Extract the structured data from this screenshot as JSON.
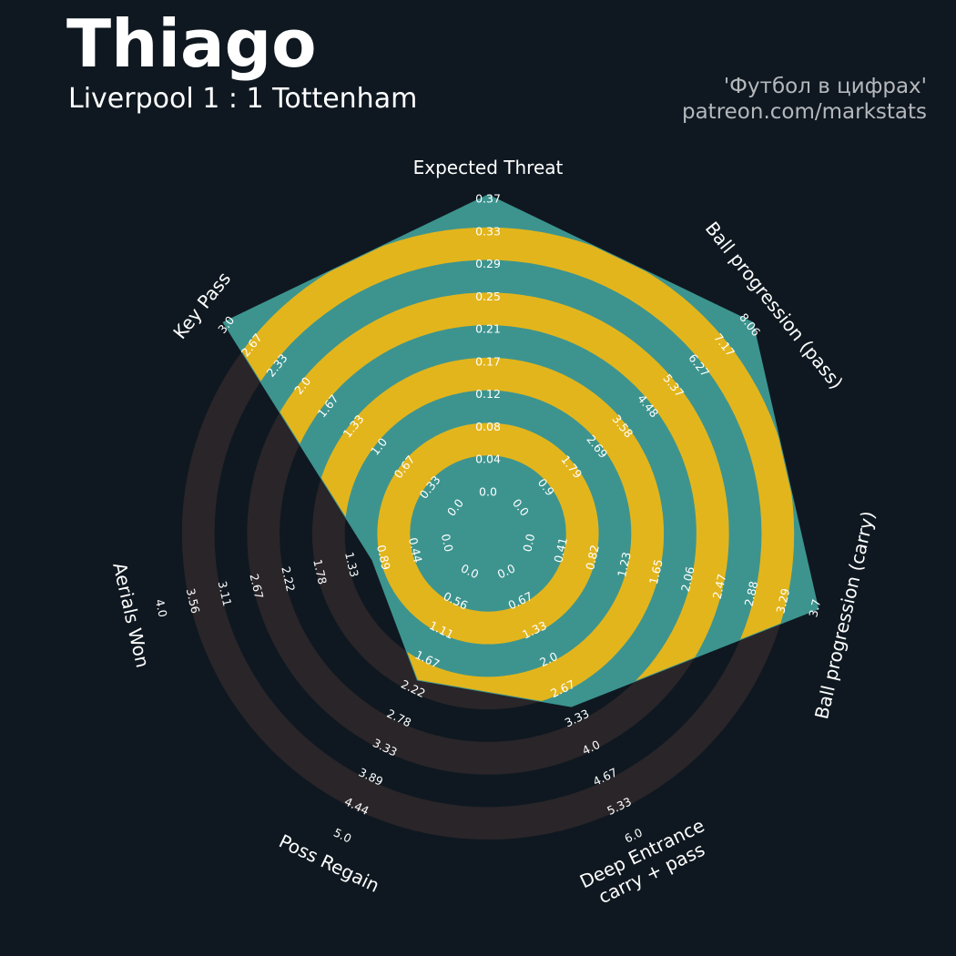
{
  "header": {
    "player_name": "Thiago",
    "match": "Liverpool 1 : 1 Tottenham",
    "credit_line1": "'Футбол в цифрах'",
    "credit_line2": "patreon.com/markstats"
  },
  "colors": {
    "background": "#0f1820",
    "outer_ring": "#292529",
    "polygon_fill": "#3d948f",
    "polygon_ring": "#e3b51c",
    "center": "#e3b51c"
  },
  "chart_data": {
    "type": "radar",
    "axes": [
      {
        "label": [
          "Expected Threat"
        ],
        "min": 0.0,
        "max": 0.37,
        "value": 0.37,
        "ticks": [
          "0.0",
          "0.04",
          "0.08",
          "0.12",
          "0.17",
          "0.21",
          "0.25",
          "0.29",
          "0.33",
          "0.37"
        ]
      },
      {
        "label": [
          "Ball progression (pass)"
        ],
        "min": 0.0,
        "max": 8.06,
        "value": 8.06,
        "ticks": [
          "0.0",
          "0.9",
          "1.79",
          "2.69",
          "3.58",
          "4.48",
          "5.37",
          "6.27",
          "7.17",
          "8.06"
        ]
      },
      {
        "label": [
          "Ball progression (carry)"
        ],
        "min": 0.0,
        "max": 3.7,
        "value": 3.7,
        "ticks": [
          "0.0",
          "0.41",
          "0.82",
          "1.23",
          "1.65",
          "2.06",
          "2.47",
          "2.88",
          "3.29",
          "3.7"
        ]
      },
      {
        "label": [
          "Deep Entrance",
          "carry + pass"
        ],
        "min": 0.0,
        "max": 6.0,
        "value": 3.0,
        "ticks": [
          "0.0",
          "0.67",
          "1.33",
          "2.0",
          "2.67",
          "3.33",
          "4.0",
          "4.67",
          "5.33",
          "6.0"
        ]
      },
      {
        "label": [
          "Poss Regain"
        ],
        "min": 0.0,
        "max": 5.0,
        "value": 2.0,
        "ticks": [
          "0.0",
          "0.56",
          "1.11",
          "1.67",
          "2.22",
          "2.78",
          "3.33",
          "3.89",
          "4.44",
          "5.0"
        ]
      },
      {
        "label": [
          "Aerials Won"
        ],
        "min": 0.0,
        "max": 4.0,
        "value": 1.0,
        "ticks": [
          "0.0",
          "0.44",
          "0.89",
          "1.33",
          "1.78",
          "2.22",
          "2.67",
          "3.11",
          "3.56",
          "4.0"
        ]
      },
      {
        "label": [
          "Key Pass"
        ],
        "min": 0.0,
        "max": 3.0,
        "value": 3.0,
        "ticks": [
          "0.0",
          "0.33",
          "0.67",
          "1.0",
          "1.33",
          "1.67",
          "2.0",
          "2.33",
          "2.67",
          "3.0"
        ]
      }
    ]
  }
}
